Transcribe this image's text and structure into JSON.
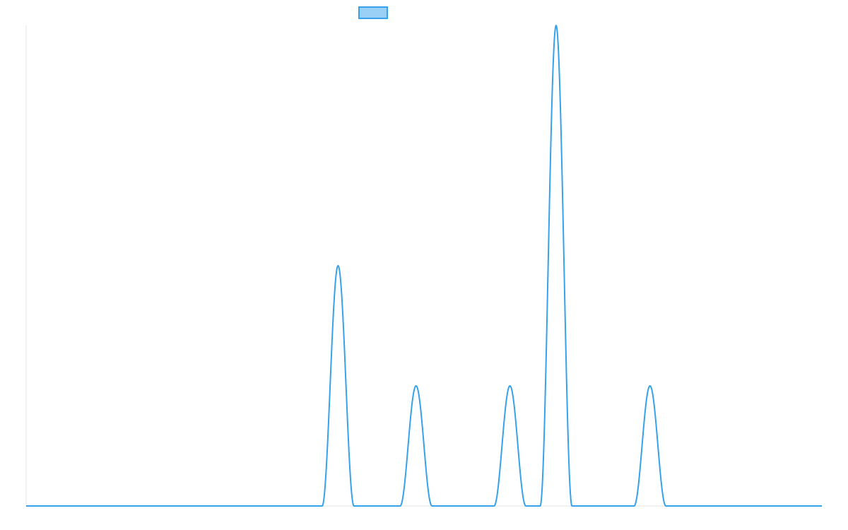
{
  "chart_data": {
    "type": "line",
    "title": "",
    "xlabel": "",
    "ylabel": "",
    "grid": false,
    "legend": {
      "position": "top-center",
      "entries": [
        {
          "label": "",
          "color": "#36a2eb",
          "fill": "#9ad0f5"
        }
      ]
    },
    "xlim": [
      0,
      100
    ],
    "ylim": [
      0,
      4
    ],
    "series": [
      {
        "color": "#36a2eb",
        "peaks": [
          {
            "center": 39.2,
            "height": 2.0,
            "half_width": 2.0
          },
          {
            "center": 49.0,
            "height": 1.0,
            "half_width": 2.0
          },
          {
            "center": 60.8,
            "height": 1.0,
            "half_width": 2.0
          },
          {
            "center": 66.6,
            "height": 4.0,
            "half_width": 2.0
          },
          {
            "center": 78.4,
            "height": 1.0,
            "half_width": 2.0
          }
        ]
      }
    ]
  }
}
